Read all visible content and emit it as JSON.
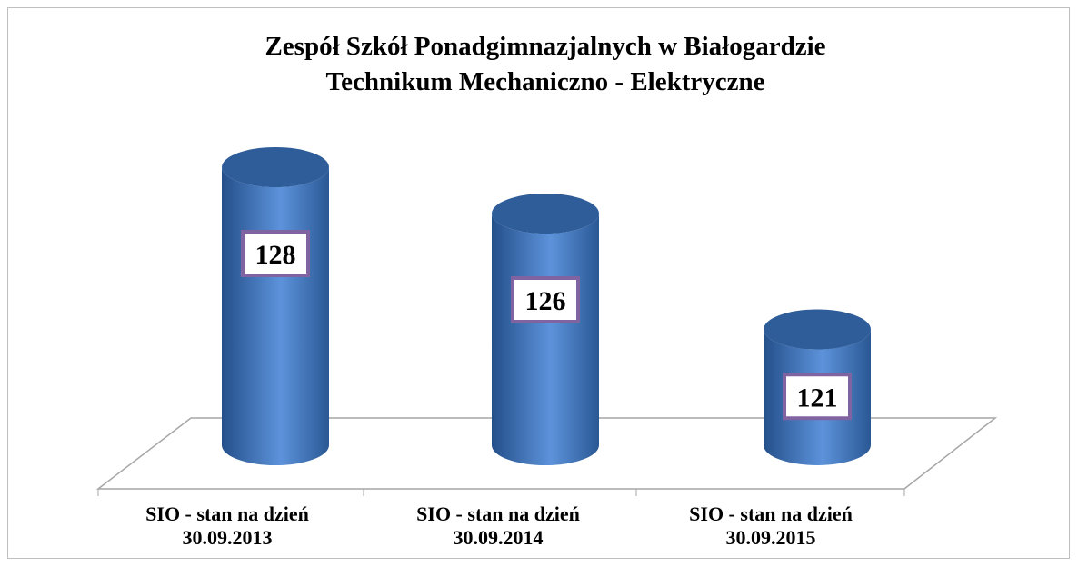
{
  "chart_data": {
    "type": "cylinder",
    "title": "Zespół Szkół Ponadgimnazjalnych w Białogardzie",
    "subtitle": "Technikum Mechaniczno - Elektryczne",
    "categories": [
      "SIO - stan na dzień 30.09.2013",
      "SIO - stan na dzień 30.09.2014",
      "SIO - stan na dzień 30.09.2015"
    ],
    "values": [
      128,
      126,
      121
    ],
    "color": "#4a7cc2",
    "ylim": [
      116,
      130
    ]
  }
}
